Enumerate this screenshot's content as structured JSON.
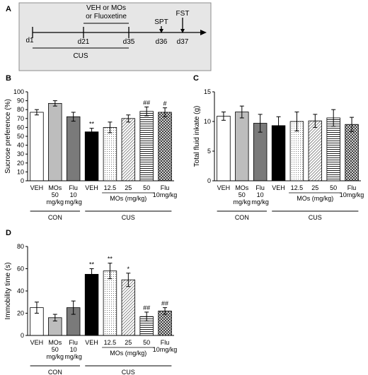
{
  "timeline": {
    "label": "A",
    "days": [
      "d1",
      "d21",
      "d35",
      "d36",
      "d37"
    ],
    "treatment": [
      "VEH or MOs",
      "or Fluoxetine"
    ],
    "tests": [
      "SPT",
      "FST"
    ],
    "stress": "CUS"
  },
  "panel_labels": [
    "B",
    "C",
    "D"
  ],
  "chart_data": [
    {
      "type": "bar",
      "panel": "B",
      "ylabel": "Sucrose preference (%)",
      "ylim": [
        0,
        100
      ],
      "yticks": [
        "0",
        "10",
        "20",
        "30",
        "40",
        "50",
        "60",
        "70",
        "80",
        "90",
        "100"
      ],
      "categories": [
        "VEH",
        "MOs 50 mg/kg",
        "Flu 10 mg/kg",
        "VEH",
        "12.5",
        "25",
        "50",
        "Flu 10mg/kg"
      ],
      "values": [
        77,
        87,
        72,
        55,
        60,
        70,
        78,
        77
      ],
      "errors": [
        3,
        3,
        5,
        4,
        6,
        4,
        5,
        5
      ],
      "significance": [
        "",
        "",
        "",
        "**",
        "",
        "",
        "##",
        "#"
      ],
      "groups": [
        "CON",
        "CUS"
      ],
      "sublabel": "MOs (mg/kg)"
    },
    {
      "type": "bar",
      "panel": "C",
      "ylabel": "Total fluid inkate (g)",
      "ylim": [
        0,
        15
      ],
      "yticks": [
        "0",
        "5",
        "10",
        "15"
      ],
      "categories": [
        "VEH",
        "MOs 50 mg/kg",
        "Flu 10 mg/kg",
        "VEH",
        "12.5",
        "25",
        "50",
        "Flu 10mg/kg"
      ],
      "values": [
        10.9,
        11.6,
        9.7,
        9.3,
        10.0,
        10.1,
        10.6,
        9.5
      ],
      "errors": [
        0.7,
        1.0,
        1.5,
        1.5,
        1.6,
        1.1,
        1.4,
        1.2
      ],
      "significance": [
        "",
        "",
        "",
        "",
        "",
        "",
        "",
        ""
      ],
      "groups": [
        "CON",
        "CUS"
      ],
      "sublabel": "MOs (mg/kg)"
    },
    {
      "type": "bar",
      "panel": "D",
      "ylabel": "Immobility time (s)",
      "ylim": [
        0,
        80
      ],
      "yticks": [
        "0",
        "20",
        "40",
        "60",
        "80"
      ],
      "categories": [
        "VEH",
        "MOs 50 mg/kg",
        "Flu 10 mg/kg",
        "VEH",
        "12.5",
        "25",
        "50",
        "Flu 10mg/kg"
      ],
      "values": [
        25,
        16,
        25,
        55,
        58,
        50,
        17,
        22
      ],
      "errors": [
        5,
        3,
        6,
        5,
        7,
        6,
        4,
        3
      ],
      "significance": [
        "",
        "",
        "",
        "**",
        "**",
        "*",
        "##",
        "##"
      ],
      "groups": [
        "CON",
        "CUS"
      ],
      "sublabel": "MOs (mg/kg)"
    }
  ]
}
